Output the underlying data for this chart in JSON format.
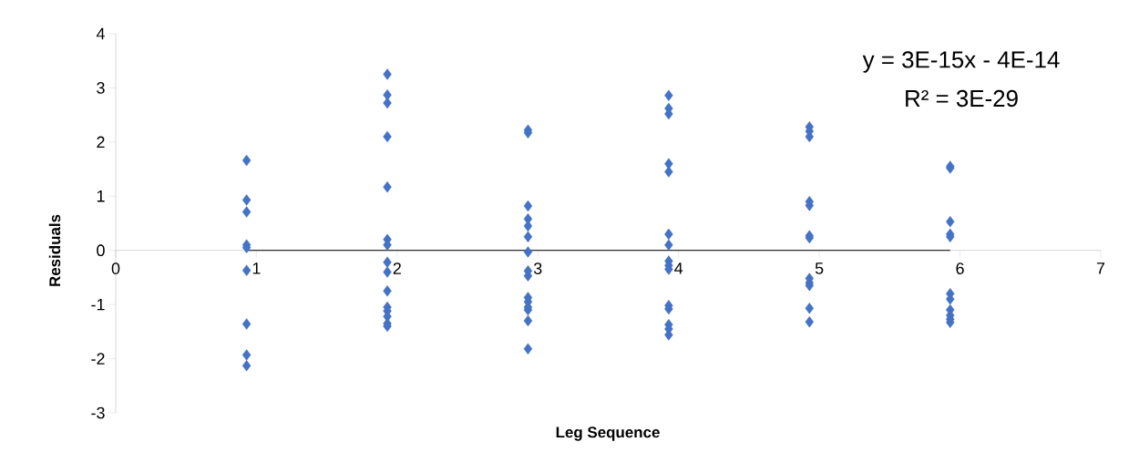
{
  "chart_data": {
    "type": "scatter",
    "xlabel": "Leg Sequence",
    "ylabel": "Residuals",
    "annotations": [
      "y = 3E-15x - 4E-14",
      "R² = 3E-29"
    ],
    "xlim": [
      0,
      7
    ],
    "ylim": [
      -3,
      4
    ],
    "xticks": [
      0,
      1,
      2,
      3,
      4,
      5,
      6,
      7
    ],
    "yticks": [
      -3,
      -2,
      -1,
      0,
      1,
      2,
      3,
      4
    ],
    "grid": false,
    "marker": "diamond",
    "series": [
      {
        "color": "#4472c4",
        "x": [
          0.93,
          0.93,
          0.93,
          0.93,
          0.93,
          0.93,
          0.93,
          0.93,
          0.93,
          1.93,
          1.93,
          1.93,
          1.93,
          1.93,
          1.93,
          1.93,
          1.93,
          1.93,
          1.93,
          1.93,
          1.93,
          1.93,
          1.93,
          1.93,
          2.93,
          2.93,
          2.93,
          2.93,
          2.93,
          2.93,
          2.93,
          2.93,
          2.93,
          2.93,
          2.93,
          2.93,
          2.93,
          2.93,
          2.93,
          3.93,
          3.93,
          3.93,
          3.93,
          3.93,
          3.93,
          3.93,
          3.93,
          3.93,
          3.93,
          3.93,
          3.93,
          3.93,
          3.93,
          3.93,
          4.93,
          4.93,
          4.93,
          4.93,
          4.93,
          4.93,
          4.93,
          4.93,
          4.93,
          4.93,
          4.93,
          4.93,
          5.93,
          5.93,
          5.93,
          5.93,
          5.93,
          5.93,
          5.93,
          5.93,
          5.93,
          5.93,
          5.93
        ],
        "values": [
          1.66,
          0.93,
          0.71,
          0.1,
          0.05,
          -0.37,
          -1.36,
          -1.93,
          -2.13,
          3.25,
          2.87,
          2.72,
          2.1,
          1.17,
          0.2,
          0.1,
          -0.22,
          -0.4,
          -0.75,
          -1.05,
          -1.12,
          -1.22,
          -1.35,
          -1.4,
          2.22,
          2.17,
          0.82,
          0.58,
          0.45,
          0.25,
          -0.03,
          -0.38,
          -0.47,
          -0.87,
          -0.95,
          -1.05,
          -1.1,
          -1.3,
          -1.82,
          2.86,
          2.62,
          2.52,
          1.6,
          1.45,
          0.3,
          0.1,
          -0.2,
          -0.28,
          -0.35,
          -1.02,
          -1.08,
          -1.37,
          -1.45,
          -1.56,
          2.28,
          2.2,
          2.1,
          0.9,
          0.83,
          0.27,
          0.23,
          -0.52,
          -0.6,
          -0.65,
          -1.07,
          -1.32,
          1.55,
          1.52,
          0.53,
          0.3,
          0.25,
          -0.8,
          -0.9,
          -1.1,
          -1.2,
          -1.27,
          -1.33
        ]
      },
      {
        "type": "line",
        "color": "#000000",
        "marker": "none",
        "x": [
          0.93,
          5.93
        ],
        "values": [
          0,
          0
        ]
      }
    ]
  }
}
